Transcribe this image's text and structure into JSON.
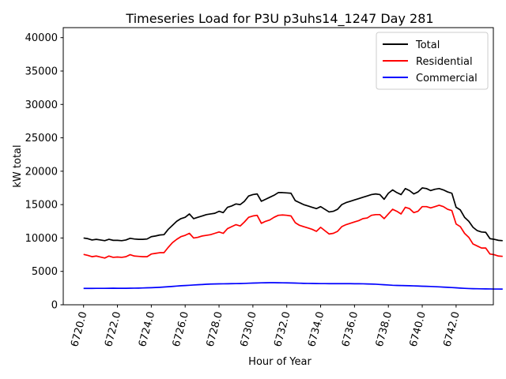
{
  "chart_data": {
    "type": "line",
    "title": "Timeseries Load for P3U p3uhs14_1247  Day 281",
    "xlabel": "Hour of Year",
    "ylabel": "kW total",
    "xlim": [
      6718.8,
      6744.2
    ],
    "ylim": [
      0,
      41500
    ],
    "x_ticks": [
      6720,
      6722,
      6724,
      6726,
      6728,
      6730,
      6732,
      6734,
      6736,
      6738,
      6740,
      6742
    ],
    "x_tick_labels": [
      "6720.0",
      "6722.0",
      "6724.0",
      "6726.0",
      "6728.0",
      "6730.0",
      "6732.0",
      "6734.0",
      "6736.0",
      "6738.0",
      "6740.0",
      "6742.0"
    ],
    "y_ticks": [
      0,
      5000,
      10000,
      15000,
      20000,
      25000,
      30000,
      35000,
      40000
    ],
    "y_tick_labels": [
      "0",
      "5000",
      "10000",
      "15000",
      "20000",
      "25000",
      "30000",
      "35000",
      "40000"
    ],
    "legend_position": "top-right",
    "x_start": 6720,
    "x_step": 0.25,
    "series": [
      {
        "name": "Total",
        "color": "#000000",
        "values": [
          10000,
          9900,
          9700,
          9800,
          9700,
          9600,
          9800,
          9650,
          9650,
          9600,
          9700,
          9950,
          9850,
          9800,
          9800,
          9850,
          10200,
          10300,
          10450,
          10500,
          11300,
          11900,
          12500,
          12900,
          13100,
          13600,
          12900,
          13100,
          13300,
          13500,
          13600,
          13700,
          14000,
          13800,
          14600,
          14800,
          15100,
          15000,
          15500,
          16300,
          16500,
          16600,
          15500,
          15800,
          16100,
          16400,
          16800,
          16800,
          16750,
          16700,
          15600,
          15300,
          15000,
          14800,
          14600,
          14400,
          14700,
          14300,
          13900,
          14000,
          14300,
          15000,
          15300,
          15500,
          15700,
          15900,
          16100,
          16300,
          16500,
          16600,
          16500,
          15800,
          16700,
          17200,
          16800,
          16500,
          17400,
          17100,
          16600,
          16900,
          17500,
          17400,
          17100,
          17300,
          17400,
          17200,
          16900,
          16700,
          14600,
          14200,
          13100,
          12500,
          11600,
          11100,
          10900,
          10850,
          9900,
          9800,
          9650,
          9600
        ]
      },
      {
        "name": "Residential",
        "color": "#ff0000",
        "values": [
          7550,
          7400,
          7200,
          7300,
          7150,
          7000,
          7300,
          7100,
          7150,
          7100,
          7200,
          7500,
          7300,
          7250,
          7200,
          7200,
          7600,
          7700,
          7800,
          7800,
          8600,
          9300,
          9800,
          10200,
          10400,
          10700,
          10000,
          10100,
          10300,
          10400,
          10500,
          10700,
          10900,
          10700,
          11400,
          11700,
          12000,
          11800,
          12400,
          13100,
          13300,
          13400,
          12200,
          12500,
          12700,
          13100,
          13400,
          13450,
          13400,
          13300,
          12300,
          11900,
          11700,
          11500,
          11300,
          11000,
          11600,
          11100,
          10600,
          10700,
          11000,
          11700,
          12000,
          12200,
          12400,
          12600,
          12900,
          13000,
          13400,
          13500,
          13500,
          12900,
          13600,
          14300,
          14000,
          13600,
          14600,
          14400,
          13800,
          14000,
          14700,
          14700,
          14500,
          14700,
          14900,
          14700,
          14300,
          14100,
          12100,
          11700,
          10700,
          10100,
          9100,
          8800,
          8500,
          8500,
          7600,
          7500,
          7300,
          7250
        ]
      },
      {
        "name": "Commercial",
        "color": "#0000ff",
        "values": [
          2450,
          2450,
          2450,
          2460,
          2460,
          2460,
          2470,
          2480,
          2470,
          2470,
          2470,
          2480,
          2490,
          2500,
          2520,
          2540,
          2560,
          2590,
          2620,
          2660,
          2700,
          2750,
          2800,
          2850,
          2880,
          2920,
          2960,
          3000,
          3030,
          3070,
          3100,
          3120,
          3130,
          3140,
          3150,
          3160,
          3170,
          3180,
          3200,
          3230,
          3250,
          3270,
          3290,
          3300,
          3310,
          3310,
          3300,
          3290,
          3280,
          3270,
          3250,
          3230,
          3210,
          3200,
          3190,
          3180,
          3170,
          3170,
          3160,
          3160,
          3160,
          3160,
          3160,
          3160,
          3150,
          3150,
          3140,
          3120,
          3100,
          3080,
          3040,
          3000,
          2960,
          2920,
          2900,
          2880,
          2870,
          2850,
          2830,
          2810,
          2780,
          2760,
          2740,
          2710,
          2680,
          2650,
          2620,
          2580,
          2540,
          2500,
          2460,
          2430,
          2410,
          2400,
          2390,
          2380,
          2370,
          2360,
          2360,
          2350
        ]
      }
    ]
  }
}
